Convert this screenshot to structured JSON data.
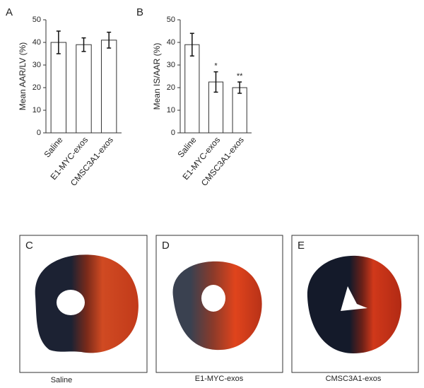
{
  "chart_data": [
    {
      "type": "bar",
      "panel": "A",
      "ylabel": "Mean AAR/LV (%)",
      "categories": [
        "Saline",
        "E1-MYC-exos",
        "CMSC3A1-exos"
      ],
      "values": [
        40,
        39,
        41
      ],
      "errors": [
        5,
        3,
        3.5
      ],
      "significance": [
        null,
        null,
        null
      ],
      "color": "#ffffff",
      "ylim": [
        0,
        50
      ],
      "yticks": [
        0,
        10,
        20,
        30,
        40,
        50
      ]
    },
    {
      "type": "bar",
      "panel": "B",
      "ylabel": "Mean IS/AAR (%)",
      "categories": [
        "Saline",
        "E1-MYC-exos",
        "CMSC3A1-exos"
      ],
      "values": [
        39,
        22.5,
        20
      ],
      "errors": [
        5,
        4.5,
        2.5
      ],
      "significance": [
        null,
        "*",
        "**"
      ],
      "color": "#ffffff",
      "ylim": [
        0,
        50
      ],
      "yticks": [
        0,
        10,
        20,
        30,
        40,
        50
      ]
    }
  ],
  "photos": [
    {
      "panel": "C",
      "caption": "Saline"
    },
    {
      "panel": "D",
      "caption": "E1-MYC-exos"
    },
    {
      "panel": "E",
      "caption": "CMSC3A1-exos"
    }
  ]
}
